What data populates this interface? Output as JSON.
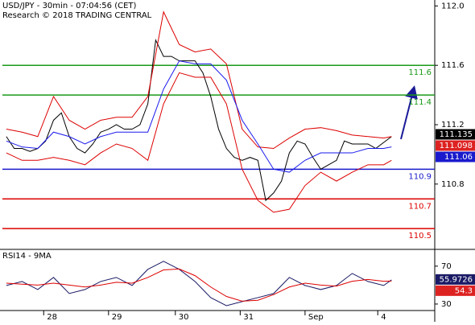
{
  "chart_data": [
    {
      "type": "line",
      "title": "USD/JPY - 30min - 07:04:56 (CET)",
      "subtitle": "Research © 2018 TRADING CENTRAL",
      "x": [
        2,
        6,
        10,
        14,
        18,
        22,
        26,
        30,
        34,
        38,
        42,
        46,
        50,
        54,
        58,
        62,
        66,
        70,
        74,
        78,
        82,
        86,
        90,
        94,
        98,
        102,
        106,
        110,
        114,
        118,
        122,
        126,
        130,
        134,
        138,
        142,
        146,
        150,
        154,
        158,
        162,
        166,
        170,
        174,
        178,
        182,
        186,
        190,
        194,
        198
      ],
      "series": [
        {
          "color": "#000000",
          "values": [
            111.12,
            111.04,
            111.04,
            111.02,
            111.04,
            111.09,
            111.23,
            111.28,
            111.12,
            111.04,
            111.01,
            111.07,
            111.15,
            111.17,
            111.2,
            111.17,
            111.17,
            111.2,
            111.34,
            111.77,
            111.66,
            111.66,
            111.63,
            111.63,
            111.63,
            111.55,
            111.39,
            111.17,
            111.04,
            110.98,
            110.96,
            110.98,
            110.96,
            110.69,
            110.74,
            110.82,
            111.01,
            111.09,
            111.07,
            110.98,
            110.9,
            110.93,
            110.96,
            111.09,
            111.07,
            111.07,
            111.07,
            111.04,
            111.08,
            111.12
          ]
        },
        {
          "color": "#dd0000",
          "x": [
            2,
            10,
            18,
            26,
            34,
            42,
            50,
            58,
            66,
            74,
            82,
            90,
            98,
            106,
            114,
            122,
            130,
            138,
            146,
            154,
            162,
            170,
            178,
            186,
            194,
            198
          ],
          "values": [
            111.17,
            111.15,
            111.12,
            111.39,
            111.23,
            111.17,
            111.23,
            111.25,
            111.25,
            111.39,
            111.96,
            111.74,
            111.69,
            111.71,
            111.61,
            111.17,
            111.05,
            111.04,
            111.11,
            111.17,
            111.18,
            111.16,
            111.13,
            111.12,
            111.11,
            111.12
          ]
        },
        {
          "color": "#dd0000",
          "x": [
            2,
            10,
            18,
            26,
            34,
            42,
            50,
            58,
            66,
            74,
            82,
            90,
            98,
            106,
            114,
            122,
            130,
            138,
            146,
            154,
            162,
            170,
            178,
            186,
            194,
            198
          ],
          "values": [
            111.01,
            110.96,
            110.96,
            110.98,
            110.96,
            110.93,
            111.01,
            111.07,
            111.04,
            110.96,
            111.34,
            111.55,
            111.52,
            111.52,
            111.34,
            110.9,
            110.69,
            110.61,
            110.63,
            110.79,
            110.88,
            110.82,
            110.88,
            110.93,
            110.93,
            110.96
          ]
        },
        {
          "color": "#1a1aee",
          "x": [
            2,
            10,
            18,
            26,
            34,
            42,
            50,
            58,
            66,
            74,
            82,
            90,
            98,
            106,
            114,
            122,
            130,
            138,
            146,
            154,
            162,
            170,
            178,
            186,
            194,
            198
          ],
          "values": [
            111.09,
            111.05,
            111.04,
            111.15,
            111.12,
            111.07,
            111.12,
            111.15,
            111.15,
            111.15,
            111.44,
            111.63,
            111.61,
            111.61,
            111.5,
            111.23,
            111.07,
            110.9,
            110.88,
            110.96,
            111.01,
            111.01,
            111.01,
            111.04,
            111.04,
            111.05
          ]
        }
      ],
      "xlim": [
        0,
        220
      ],
      "ylim": [
        110.36,
        112.04
      ],
      "yticks": [
        110.8,
        111.2,
        111.6,
        {
          "value": 112.0,
          "label": "112.0"
        }
      ],
      "levels": [
        {
          "value": 111.6,
          "color": "#1a9a1a"
        },
        {
          "value": 111.4,
          "color": "#1a9a1a"
        },
        {
          "value": 110.9,
          "color": "#1a1acc"
        },
        {
          "value": 110.7,
          "color": "#dd0000"
        },
        {
          "value": 110.5,
          "color": "#dd0000"
        }
      ],
      "last_labels": [
        {
          "value": 111.135,
          "color": "#000000"
        },
        {
          "value": 111.098,
          "color": "#dd2222"
        },
        {
          "value": 111.06,
          "color": "#1a1acc"
        }
      ]
    },
    {
      "type": "line",
      "title": "RSI14 - 9MA",
      "x": [
        2,
        10,
        18,
        26,
        34,
        42,
        50,
        58,
        66,
        74,
        82,
        90,
        98,
        106,
        114,
        122,
        130,
        138,
        146,
        154,
        162,
        170,
        178,
        186,
        194,
        198
      ],
      "series": [
        {
          "color": "#1a1a66",
          "values": [
            49.6,
            53.8,
            45.3,
            58.1,
            41.1,
            45.3,
            53.8,
            58.1,
            49.6,
            66.6,
            75.1,
            66.6,
            53.8,
            36.8,
            28.3,
            32.6,
            36.8,
            41.1,
            58.1,
            49.6,
            45.3,
            49.6,
            62.3,
            53.8,
            49.6,
            55.5
          ]
        },
        {
          "color": "#dd0000",
          "values": [
            52,
            51,
            50,
            52,
            50,
            48,
            50,
            53,
            52,
            58,
            66,
            67,
            60,
            48,
            38,
            33,
            34,
            40,
            48,
            52,
            50,
            49,
            54,
            56,
            54,
            54.3
          ]
        }
      ],
      "xlim": [
        0,
        220
      ],
      "ylim": [
        24,
        86
      ],
      "yticks": [
        30,
        70
      ],
      "xticks": [
        {
          "value": 21,
          "label": "28"
        },
        {
          "value": 54,
          "label": "29"
        },
        {
          "value": 88,
          "label": "30"
        },
        {
          "value": 121,
          "label": "31"
        },
        {
          "value": 154,
          "label": "Sep"
        },
        {
          "value": 191,
          "label": "4"
        }
      ],
      "last_labels": [
        {
          "value": 55.9726,
          "color": "#1a1a66"
        },
        {
          "value": 54.3,
          "color": "#dd2222"
        }
      ]
    }
  ]
}
